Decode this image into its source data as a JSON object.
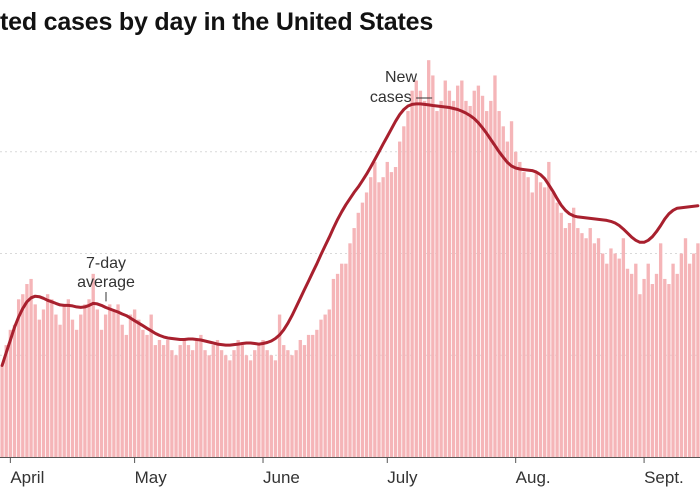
{
  "chart_data": {
    "type": "bar",
    "title": "ted cases by day in the United States",
    "xlabel": "",
    "ylabel": "",
    "ylim": [
      0,
      80000
    ],
    "grid": true,
    "y_gridlines": [
      20000,
      40000,
      60000
    ],
    "x_ticks": [
      {
        "label": "April",
        "day": 2
      },
      {
        "label": "May",
        "day": 32
      },
      {
        "label": "June",
        "day": 63
      },
      {
        "label": "July",
        "day": 93
      },
      {
        "label": "Aug.",
        "day": 124
      },
      {
        "label": "Sept.",
        "day": 155
      }
    ],
    "annotations": [
      {
        "text_lines": [
          "7-day",
          "average"
        ],
        "target": "average"
      },
      {
        "text_lines": [
          "New",
          "cases —"
        ],
        "target": "bars"
      }
    ],
    "series": [
      {
        "kind": "bars",
        "x": [
          0,
          1,
          2,
          3,
          4,
          5,
          6,
          7,
          8,
          9,
          10,
          11,
          12,
          13,
          14,
          15,
          16,
          17,
          18,
          19,
          20,
          21,
          22,
          23,
          24,
          25,
          26,
          27,
          28,
          29,
          30,
          31,
          32,
          33,
          34,
          35,
          36,
          37,
          38,
          39,
          40,
          41,
          42,
          43,
          44,
          45,
          46,
          47,
          48,
          49,
          50,
          51,
          52,
          53,
          54,
          55,
          56,
          57,
          58,
          59,
          60,
          61,
          62,
          63,
          64,
          65,
          66,
          67,
          68,
          69,
          70,
          71,
          72,
          73,
          74,
          75,
          76,
          77,
          78,
          79,
          80,
          81,
          82,
          83,
          84,
          85,
          86,
          87,
          88,
          89,
          90,
          91,
          92,
          93,
          94,
          95,
          96,
          97,
          98,
          99,
          100,
          101,
          102,
          103,
          104,
          105,
          106,
          107,
          108,
          109,
          110,
          111,
          112,
          113,
          114,
          115,
          116,
          117,
          118,
          119,
          120,
          121,
          122,
          123,
          124,
          125,
          126,
          127,
          128,
          129,
          130,
          131,
          132,
          133,
          134,
          135,
          136,
          137,
          138,
          139,
          140,
          141,
          142,
          143,
          144,
          145,
          146,
          147,
          148,
          149,
          150,
          151,
          152,
          153,
          154,
          155,
          156,
          157,
          158,
          159,
          160,
          161,
          162,
          163,
          164,
          165,
          166,
          167,
          168
        ],
        "values": [
          18000,
          22000,
          25000,
          26000,
          31000,
          32000,
          34000,
          35000,
          30000,
          27000,
          29000,
          32000,
          31000,
          28000,
          26000,
          30000,
          31000,
          27000,
          25000,
          28000,
          30000,
          31000,
          36000,
          29000,
          25000,
          28000,
          30000,
          29000,
          30000,
          26000,
          24000,
          28000,
          29000,
          27000,
          25000,
          24000,
          28000,
          22000,
          23000,
          22000,
          23000,
          21000,
          20000,
          22000,
          23000,
          22000,
          21000,
          23000,
          24000,
          21000,
          20000,
          22000,
          23000,
          21000,
          20000,
          19000,
          21000,
          23000,
          22000,
          20000,
          19000,
          21000,
          22000,
          23000,
          21000,
          20000,
          19000,
          28000,
          22000,
          21000,
          20000,
          21000,
          23000,
          22000,
          24000,
          24000,
          25000,
          27000,
          28000,
          29000,
          35000,
          36000,
          38000,
          38000,
          42000,
          45000,
          48000,
          50000,
          52000,
          55000,
          58000,
          54000,
          55000,
          58000,
          56000,
          57000,
          62000,
          65000,
          68000,
          72000,
          74000,
          72000,
          70000,
          78000,
          75000,
          68000,
          70000,
          74000,
          72000,
          70000,
          73000,
          74000,
          70000,
          69000,
          72000,
          73000,
          71000,
          68000,
          70000,
          75000,
          68000,
          65000,
          62000,
          66000,
          60000,
          58000,
          56000,
          55000,
          52000,
          56000,
          54000,
          53000,
          58000,
          52000,
          50000,
          48000,
          45000,
          46000,
          49000,
          45000,
          44000,
          43000,
          45000,
          42000,
          43000,
          40000,
          38000,
          41000,
          40000,
          39000,
          43000,
          37000,
          36000,
          38000,
          32000,
          35000,
          38000,
          34000,
          36000,
          42000,
          35000,
          34000,
          38000,
          36000,
          40000,
          43000,
          38000,
          40000,
          42000
        ],
        "color": "#f5b5b8"
      },
      {
        "kind": "line",
        "name": "7-day average",
        "x": [
          0,
          1,
          2,
          3,
          4,
          5,
          6,
          7,
          8,
          9,
          10,
          11,
          12,
          13,
          14,
          15,
          16,
          17,
          18,
          19,
          20,
          21,
          22,
          23,
          24,
          25,
          26,
          27,
          28,
          29,
          30,
          31,
          32,
          33,
          34,
          35,
          36,
          37,
          38,
          39,
          40,
          41,
          42,
          43,
          44,
          45,
          46,
          47,
          48,
          49,
          50,
          51,
          52,
          53,
          54,
          55,
          56,
          57,
          58,
          59,
          60,
          61,
          62,
          63,
          64,
          65,
          66,
          67,
          68,
          69,
          70,
          71,
          72,
          73,
          74,
          75,
          76,
          77,
          78,
          79,
          80,
          81,
          82,
          83,
          84,
          85,
          86,
          87,
          88,
          89,
          90,
          91,
          92,
          93,
          94,
          95,
          96,
          97,
          98,
          99,
          100,
          101,
          102,
          103,
          104,
          105,
          106,
          107,
          108,
          109,
          110,
          111,
          112,
          113,
          114,
          115,
          116,
          117,
          118,
          119,
          120,
          121,
          122,
          123,
          124,
          125,
          126,
          127,
          128,
          129,
          130,
          131,
          132,
          133,
          134,
          135,
          136,
          137,
          138,
          139,
          140,
          141,
          142,
          143,
          144,
          145,
          146,
          147,
          148,
          149,
          150,
          151,
          152,
          153,
          154,
          155,
          156,
          157,
          158,
          159,
          160,
          161,
          162,
          163,
          164,
          165,
          166,
          167,
          168
        ],
        "values": [
          18000,
          20500,
          23000,
          25500,
          27500,
          29200,
          30500,
          31300,
          31600,
          31500,
          31200,
          30800,
          30500,
          30200,
          29900,
          29800,
          29800,
          29700,
          29500,
          29400,
          29500,
          29800,
          30200,
          30100,
          29800,
          29400,
          29100,
          28800,
          28500,
          28100,
          27800,
          27300,
          26800,
          26300,
          25800,
          25300,
          24800,
          24300,
          23900,
          23600,
          23400,
          23300,
          23200,
          23100,
          23100,
          23200,
          23200,
          23100,
          23000,
          22800,
          22600,
          22400,
          22200,
          22100,
          22000,
          22000,
          22100,
          22200,
          22300,
          22400,
          22400,
          22300,
          22200,
          22300,
          22500,
          22800,
          23300,
          24000,
          25000,
          26300,
          27800,
          29500,
          31200,
          32900,
          34600,
          36300,
          38000,
          39800,
          41500,
          43200,
          45000,
          46700,
          48200,
          49600,
          50800,
          52000,
          53100,
          54300,
          55600,
          57000,
          58500,
          60000,
          61500,
          63000,
          64500,
          66000,
          67300,
          68300,
          69000,
          69300,
          69400,
          69400,
          69300,
          69200,
          69100,
          69000,
          68900,
          68800,
          68700,
          68500,
          68300,
          68000,
          67600,
          67100,
          66500,
          65700,
          64700,
          63600,
          62400,
          61200,
          60000,
          58900,
          57900,
          57200,
          56800,
          56600,
          56500,
          56400,
          56300,
          56000,
          55500,
          54700,
          53500,
          52200,
          50800,
          49500,
          48500,
          47800,
          47400,
          47200,
          47100,
          47000,
          46900,
          46800,
          46700,
          46600,
          46500,
          46300,
          46000,
          45500,
          44800,
          44000,
          43200,
          42600,
          42200,
          42200,
          42600,
          43300,
          44300,
          45500,
          46800,
          47800,
          48500,
          48900,
          49000,
          49100,
          49200,
          49300,
          49400
        ],
        "color": "#a8202e"
      }
    ]
  }
}
